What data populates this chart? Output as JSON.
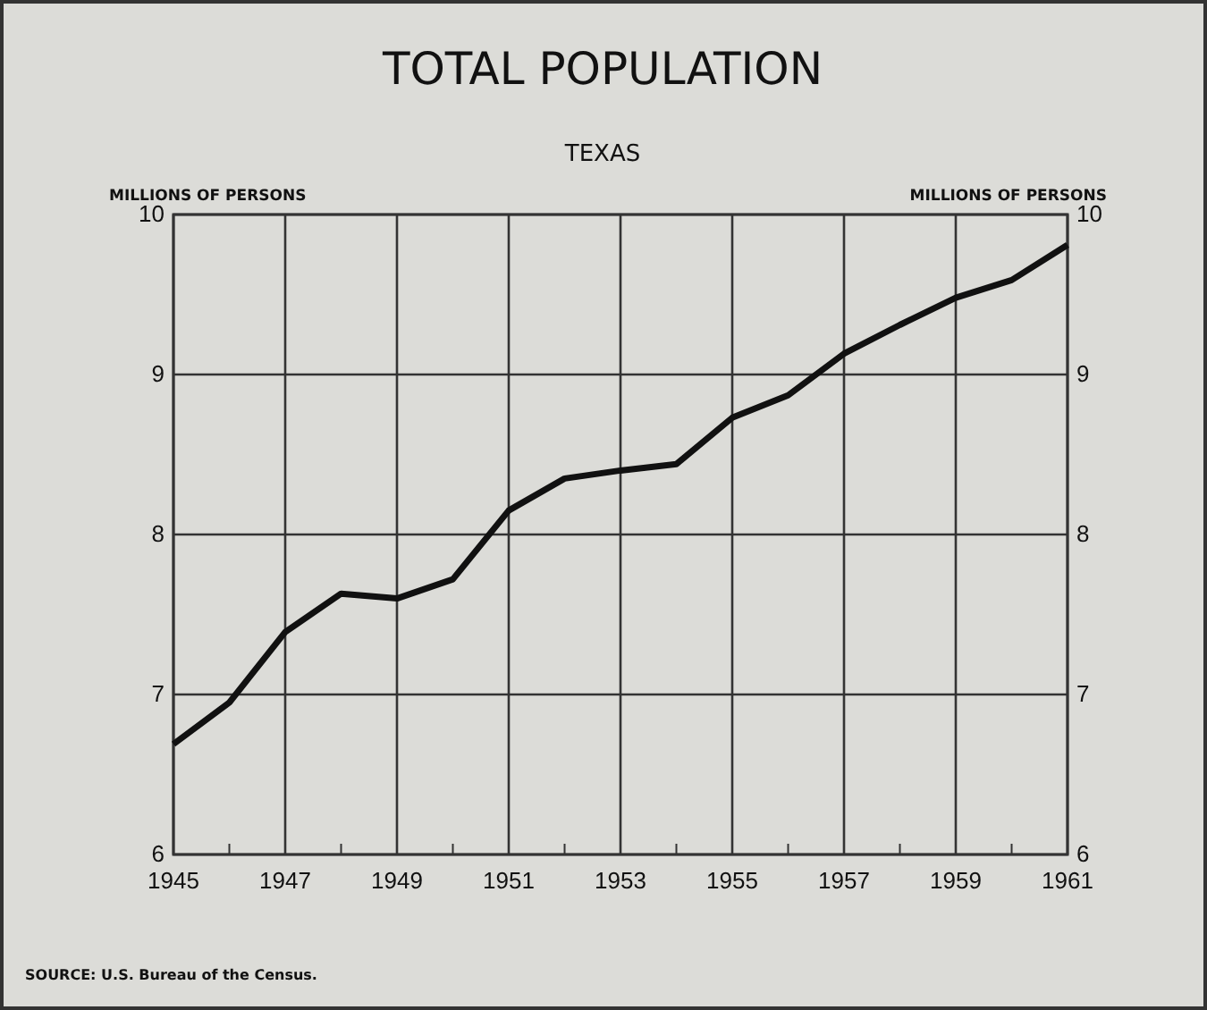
{
  "chart_data": {
    "type": "line",
    "title": "TOTAL POPULATION",
    "subtitle": "TEXAS",
    "ylabel": "MILLIONS OF PERSONS",
    "y2label": "MILLIONS OF PERSONS",
    "x": [
      1945,
      1946,
      1947,
      1948,
      1949,
      1950,
      1951,
      1952,
      1953,
      1954,
      1955,
      1956,
      1957,
      1958,
      1959,
      1960,
      1961
    ],
    "series": [
      {
        "color": "#111111",
        "values": [
          6.69,
          6.95,
          7.39,
          7.63,
          7.6,
          7.72,
          8.15,
          8.35,
          8.4,
          8.44,
          8.73,
          8.87,
          9.13,
          9.31,
          9.48,
          9.59,
          9.81
        ]
      }
    ],
    "xlim": [
      1945,
      1961
    ],
    "xticks": [
      1945,
      {
        "value": 1946,
        "label": null
      },
      1947,
      {
        "value": 1948,
        "label": null
      },
      1949,
      {
        "value": 1950,
        "label": null
      },
      1951,
      {
        "value": 1952,
        "label": null
      },
      1953,
      {
        "value": 1954,
        "label": null
      },
      1955,
      {
        "value": 1956,
        "label": null
      },
      1957,
      {
        "value": 1958,
        "label": null
      },
      1959,
      {
        "value": 1960,
        "label": null
      },
      1961
    ],
    "ylim": [
      6,
      10
    ],
    "yticks": [
      6,
      7,
      8,
      9,
      10
    ],
    "y2lim": [
      6,
      10
    ],
    "y2ticks": [
      6,
      7,
      8,
      9,
      10
    ],
    "grid": true,
    "line_style": "solid",
    "marker": "none",
    "annotations": [
      "SOURCE: U.S. Bureau of the Census."
    ]
  }
}
